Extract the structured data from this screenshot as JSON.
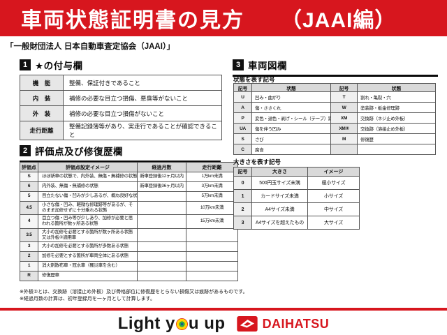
{
  "colors": {
    "accent_red": "#d7161e",
    "badge_black": "#111111"
  },
  "header": {
    "title_main": "車両状態証明書の見方",
    "title_sub": "（JAAI編）"
  },
  "association_line": "「一般財団法人 日本自動車査定協会（JAAI）」",
  "section1": {
    "number": "1",
    "title": "★の付与欄",
    "rows": [
      [
        "機　能",
        "整備、保証付きであること"
      ],
      [
        "内　装",
        "補修の必要な目立つ損傷、悪臭等がないこと"
      ],
      [
        "外　装",
        "補修の必要な目立つ損傷がないこと"
      ],
      [
        "走行距離",
        "整備記録簿等があり、実走行であることが確認できること"
      ]
    ]
  },
  "section2": {
    "number": "2",
    "title": "評価点及び修復歴欄",
    "headers": [
      "評価点",
      "評価点設定イメージ",
      "経過月数",
      "走行距離"
    ],
    "rows": [
      [
        "S",
        "ほぼ新車の状態で、内外装、無傷・無補修の状態",
        "新車登録後12ヶ月以内",
        "1万km未満"
      ],
      [
        "6",
        "内外装、無傷・無補修の状態",
        "新車登録後36ヶ月以内",
        "3万km未満"
      ],
      [
        "5",
        "目立たない傷・凹みが少しあるが、概ね良好な状態",
        "",
        "5万km未満"
      ],
      [
        "4.5",
        "小さな傷・凹み、軽微な修理跡等があるが、そのまま加修せずに十分乗れる状態",
        "",
        "10万km未満"
      ],
      [
        "4",
        "目立つ傷・凹み等が少しあり、加修が必要と思われる箇所が数ヶ所ある状態",
        "",
        "15万km未満"
      ],
      [
        "3.5",
        "大小の加修を必要とする箇所が数ヶ所ある状態又は外板②適用車",
        "",
        ""
      ],
      [
        "3",
        "大小の加修を必要とする箇所が多数ある状態",
        "",
        ""
      ],
      [
        "2",
        "加修を必要とする箇所が車両全体にある状態",
        "",
        ""
      ],
      [
        "1",
        "消火剤散布車・冠水車（罹災車を含む）",
        "",
        ""
      ],
      [
        "R",
        "修復歴車",
        "",
        ""
      ]
    ],
    "notes": [
      "※外板②とは、交換跡（溶接止め外板）及び骨格部位に修復歴をとらない損傷又は痕跡があるものです。",
      "※経過月数の計算は、初年登録月を一ヶ月として計算します。"
    ]
  },
  "section3": {
    "number": "3",
    "title": "車両図欄",
    "sub1": "状態を表す記号",
    "state_headers": [
      "記号",
      "状態",
      "記号",
      "状態"
    ],
    "state_rows": [
      [
        "U",
        "凹み・曲がり",
        "T",
        "割れ・亀裂・穴"
      ],
      [
        "A",
        "傷・ささくれ",
        "W",
        "塗装跡・板金修理跡"
      ],
      [
        "P",
        "変色・退色・剥げ・シール（テープ）跡",
        "XM",
        "交換跡（ネジ止め外板）"
      ],
      [
        "UA",
        "傷を伴う凹み",
        "XM②",
        "交換跡（溶接止め外板）"
      ],
      [
        "S",
        "さび",
        "M",
        "修復歴"
      ],
      [
        "C",
        "腐食",
        "",
        ""
      ]
    ],
    "sub2": "大きさを表す記号",
    "size_headers": [
      "記号",
      "大きさ",
      "イメージ"
    ],
    "size_rows": [
      [
        "0",
        "500円玉サイズ未満",
        "極小サイズ"
      ],
      [
        "1",
        "カードサイズ未満",
        "小サイズ"
      ],
      [
        "2",
        "A4サイズ未満",
        "中サイズ"
      ],
      [
        "3",
        "A4サイズを超えたもの",
        "大サイズ"
      ]
    ]
  },
  "footer": {
    "slogan_left": "Light y",
    "slogan_right": "u up",
    "brand": "DAIHATSU"
  }
}
